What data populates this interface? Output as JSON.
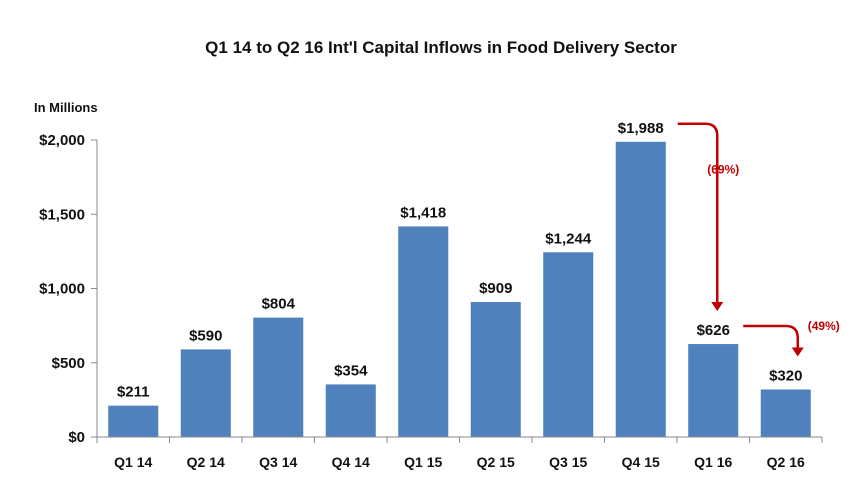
{
  "chart_data": {
    "type": "bar",
    "title": "Q1 14 to Q2 16 Int'l Capital Inflows in Food Delivery Sector",
    "unit_label": "In Millions",
    "categories": [
      "Q1 14",
      "Q2 14",
      "Q3 14",
      "Q4 14",
      "Q1 15",
      "Q2 15",
      "Q3 15",
      "Q4 15",
      "Q1 16",
      "Q2 16"
    ],
    "values": [
      211,
      590,
      804,
      354,
      1418,
      909,
      1244,
      1988,
      626,
      320
    ],
    "data_labels": [
      "$211",
      "$590",
      "$804",
      "$354",
      "$1,418",
      "$909",
      "$1,244",
      "$1,988",
      "$626",
      "$320"
    ],
    "ylim": [
      0,
      2000
    ],
    "yticks": [
      0,
      500,
      1000,
      1500,
      2000
    ],
    "ytick_labels": [
      "$0",
      "$500",
      "$1,000",
      "$1,500",
      "$2,000"
    ],
    "grid": false,
    "bar_color": "#4f81bd",
    "annotations": [
      {
        "text": "(69%)",
        "from_category": "Q4 15",
        "to_category": "Q1 16"
      },
      {
        "text": "(49%)",
        "from_category": "Q1 16",
        "to_category": "Q2 16"
      }
    ],
    "annotation_color": "#c00000"
  }
}
